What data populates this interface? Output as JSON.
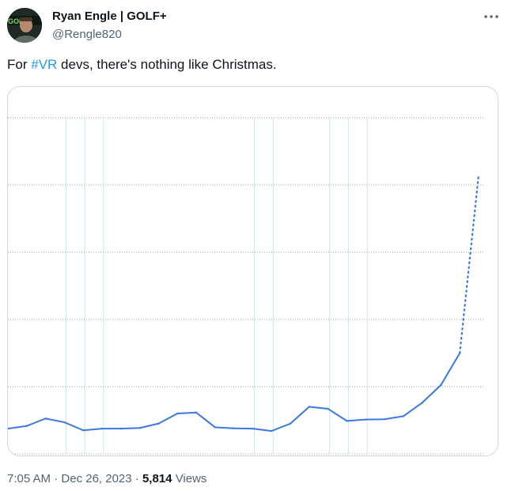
{
  "author": {
    "display_name": "Ryan Engle | GOLF+",
    "handle": "@Rengle820",
    "avatar_text": "GOLF+"
  },
  "tweet": {
    "text_before": "For ",
    "hashtag": "#VR",
    "text_after": " devs, there's nothing like Christmas."
  },
  "meta": {
    "time": "7:05 AM",
    "separator": "·",
    "date": "Dec 26, 2023",
    "views_count": "5,814",
    "views_label": "Views"
  },
  "icons": {
    "more": "more-horizontal-icon"
  },
  "colors": {
    "line": "#3b78e0",
    "hashtag": "#1d9bf0",
    "grid": "#c9e8e8"
  },
  "chart_data": {
    "type": "line",
    "title": "",
    "xlabel": "",
    "ylabel": "",
    "grid": true,
    "legend": "none",
    "ylim": [
      0,
      100
    ],
    "x": [
      0,
      1,
      2,
      3,
      4,
      5,
      6,
      7,
      8,
      9,
      10,
      11,
      12,
      13,
      14,
      15,
      16,
      17,
      18,
      19,
      20,
      21,
      22,
      23,
      24
    ],
    "values": [
      7.5,
      8.3,
      10.5,
      9.4,
      7.0,
      7.5,
      7.5,
      7.7,
      9.0,
      12.0,
      12.3,
      7.9,
      7.6,
      7.5,
      6.8,
      9.0,
      14.0,
      13.4,
      9.8,
      10.2,
      10.3,
      11.2,
      15.2,
      20.5,
      30.0
    ],
    "projection": {
      "from_index": 24,
      "x": [
        24,
        25
      ],
      "values": [
        30.0,
        83.0
      ],
      "style": "dotted"
    }
  }
}
